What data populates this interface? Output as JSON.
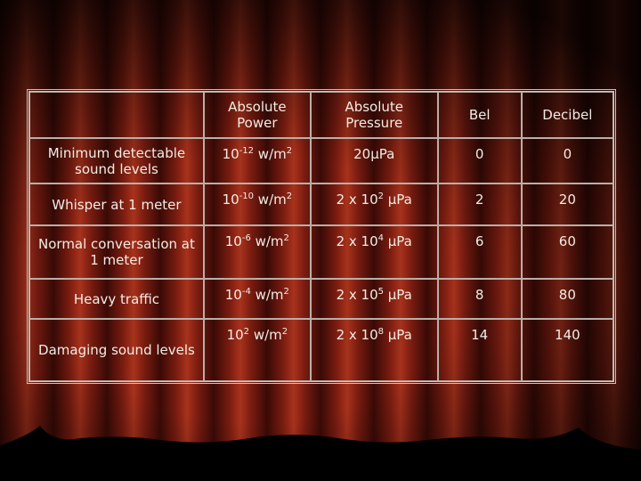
{
  "table": {
    "header": [
      "Absolute Power",
      "Absolute Pressure",
      "Bel",
      "Decibel"
    ],
    "rows": [
      [
        "Minimum detectable sound levels",
        [
          {
            "text": "10"
          },
          {
            "sup": "-12"
          },
          {
            "text": " w/m"
          },
          {
            "sup": "2"
          }
        ],
        "20μPa",
        "0",
        "0"
      ],
      [
        "Whisper at 1 meter",
        [
          {
            "text": "10"
          },
          {
            "sup": "-10"
          },
          {
            "text": " w/m"
          },
          {
            "sup": "2"
          }
        ],
        [
          {
            "text": "2 x 10"
          },
          {
            "sup": "2"
          },
          {
            "text": " μPa"
          }
        ],
        "2",
        "20"
      ],
      [
        "Normal conversation at 1 meter",
        [
          {
            "text": "10"
          },
          {
            "sup": "-6"
          },
          {
            "text": " w/m"
          },
          {
            "sup": "2"
          }
        ],
        [
          {
            "text": "2 x 10"
          },
          {
            "sup": "4"
          },
          {
            "text": " μPa"
          }
        ],
        "6",
        "60"
      ],
      [
        "Heavy traffic",
        [
          {
            "text": "10"
          },
          {
            "sup": "-4"
          },
          {
            "text": " w/m"
          },
          {
            "sup": "2"
          }
        ],
        [
          {
            "text": "2 x 10"
          },
          {
            "sup": "5"
          },
          {
            "text": " μPa"
          }
        ],
        "8",
        "80"
      ],
      [
        "Damaging sound levels",
        [
          {
            "text": "10"
          },
          {
            "sup": "2"
          },
          {
            "text": " w/m"
          },
          {
            "sup": "2"
          }
        ],
        [
          {
            "text": "2 x 10"
          },
          {
            "sup": "8"
          },
          {
            "text": " μPa"
          }
        ],
        "14",
        "140"
      ]
    ]
  }
}
